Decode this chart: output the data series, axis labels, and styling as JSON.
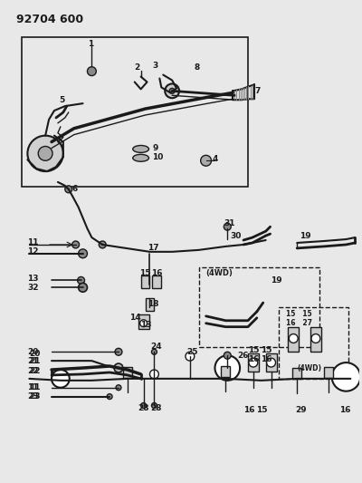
{
  "title": "92704 600",
  "bg_color": "#e8e8e8",
  "line_color": "#1a1a1a",
  "fig_width": 4.0,
  "fig_height": 5.33,
  "dpi": 100
}
